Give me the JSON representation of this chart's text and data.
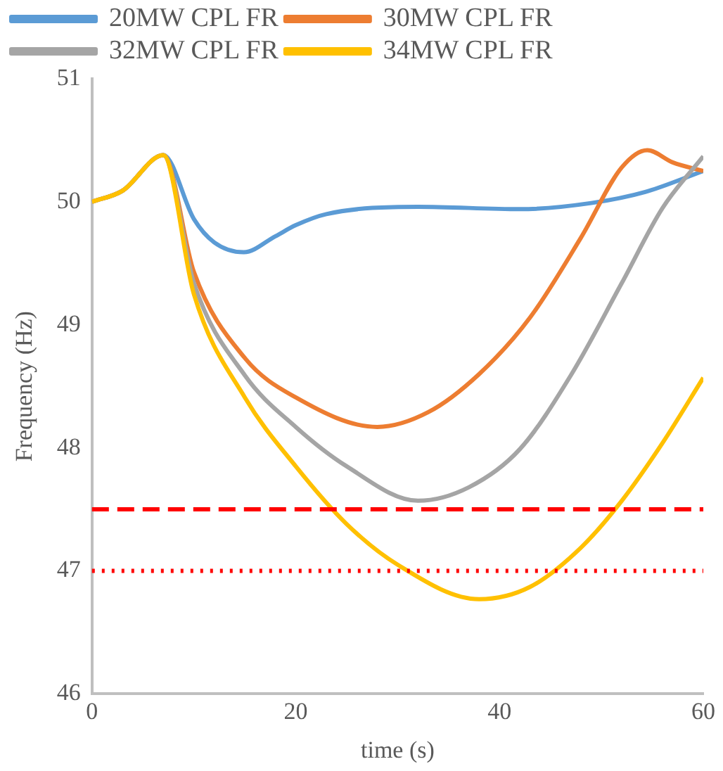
{
  "chart_data": {
    "type": "line",
    "xlabel": "time (s)",
    "ylabel": "Frequency (Hz)",
    "xlim": [
      0,
      60
    ],
    "xticks": [
      0,
      20,
      40,
      60
    ],
    "ylim": [
      46,
      51
    ],
    "yticks": [
      46,
      47,
      48,
      49,
      50,
      51
    ],
    "grid": false,
    "legend": "top",
    "marker": "none",
    "series": [
      {
        "name": "20MW CPL FR",
        "color": "#5b9bd5",
        "x": [
          0,
          3,
          7,
          10,
          12,
          14.9,
          18,
          20,
          23,
          32,
          42,
          49,
          54.3,
          60
        ],
        "values": [
          50,
          50.09,
          50.38,
          49.86,
          49.67,
          49.59,
          49.72,
          49.81,
          49.9,
          49.96,
          49.94,
          49.99,
          50.08,
          50.25
        ]
      },
      {
        "name": "30MW CPL FR",
        "color": "#ed7d31",
        "x": [
          0,
          3,
          7,
          10,
          15,
          20,
          28,
          33,
          38,
          43,
          48,
          52,
          54.5,
          57,
          60
        ],
        "values": [
          50,
          50.09,
          50.38,
          49.43,
          48.73,
          48.41,
          48.17,
          48.29,
          48.6,
          49.06,
          49.71,
          50.28,
          50.42,
          50.32,
          50.25
        ]
      },
      {
        "name": "32MW CPL FR",
        "color": "#a5a5a5",
        "x": [
          0,
          3,
          7,
          10,
          15,
          20,
          25,
          32,
          37,
          42,
          47,
          52,
          56,
          60
        ],
        "values": [
          50,
          50.09,
          50.38,
          49.34,
          48.59,
          48.17,
          47.85,
          47.57,
          47.68,
          47.99,
          48.59,
          49.34,
          49.95,
          50.37
        ]
      },
      {
        "name": "34MW CPL FR",
        "color": "#ffc000",
        "x": [
          0,
          3,
          7,
          10,
          15,
          20,
          25,
          30,
          38,
          43,
          48,
          52,
          56,
          60
        ],
        "values": [
          50,
          50.09,
          50.38,
          49.25,
          48.41,
          47.85,
          47.38,
          47.05,
          46.77,
          46.87,
          47.19,
          47.57,
          48.04,
          48.57
        ]
      }
    ],
    "ref_lines": [
      {
        "axis": "y",
        "value": 47.5,
        "color": "#ff0000",
        "line_style": "dashed"
      },
      {
        "axis": "y",
        "value": 47,
        "color": "#ff0000",
        "line_style": "dotted"
      }
    ]
  }
}
